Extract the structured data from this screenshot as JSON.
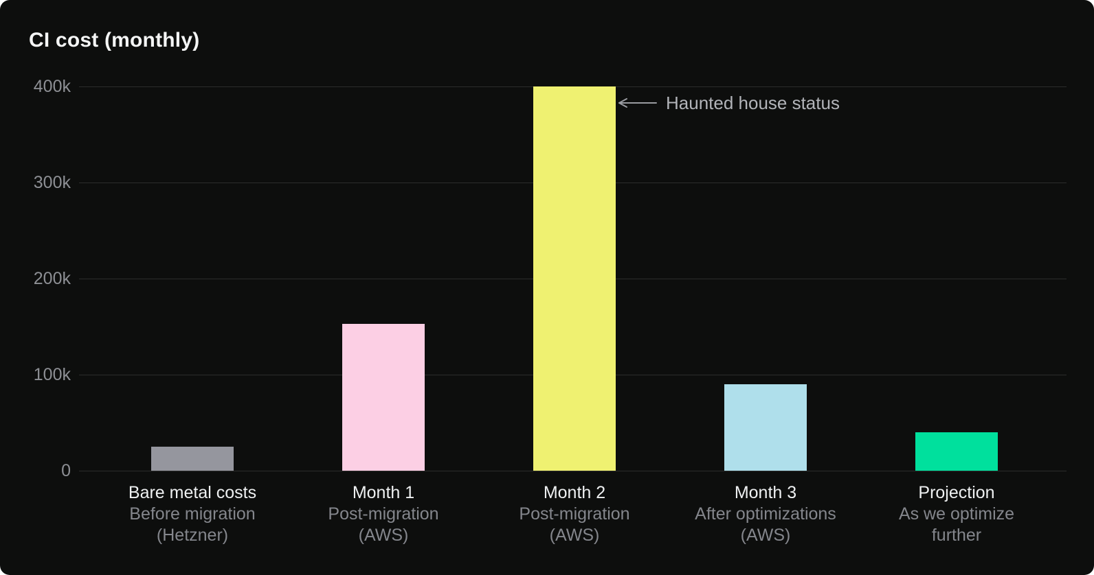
{
  "header": {
    "title": "CI cost (monthly)"
  },
  "annotation": {
    "text": "Haunted house status"
  },
  "chart_data": {
    "type": "bar",
    "title": "CI cost (monthly)",
    "categories": [
      "Bare metal costs",
      "Month 1",
      "Month 2",
      "Month 3",
      "Projection"
    ],
    "category_sublabels": [
      [
        "Before migration",
        "(Hetzner)"
      ],
      [
        "Post-migration",
        "(AWS)"
      ],
      [
        "Post-migration",
        "(AWS)"
      ],
      [
        "After optimizations",
        "(AWS)"
      ],
      [
        "As we optimize",
        "further"
      ]
    ],
    "values": [
      25000,
      153000,
      400000,
      90000,
      40000
    ],
    "bar_colors": [
      "#95969e",
      "#fccfe4",
      "#eff171",
      "#afdfeb",
      "#00e09d"
    ],
    "ylim": [
      0,
      400000
    ],
    "yticks": [
      400000,
      300000,
      200000,
      100000,
      0
    ],
    "ytick_labels": [
      "400k",
      "300k",
      "200k",
      "100k",
      "0"
    ],
    "xlabel": "",
    "ylabel": "",
    "grid": "horizontal",
    "legend": "none",
    "background": "#0d0e0d",
    "annotations": [
      {
        "text": "Haunted house status",
        "target": "Month 2",
        "arrow": "left"
      }
    ]
  }
}
